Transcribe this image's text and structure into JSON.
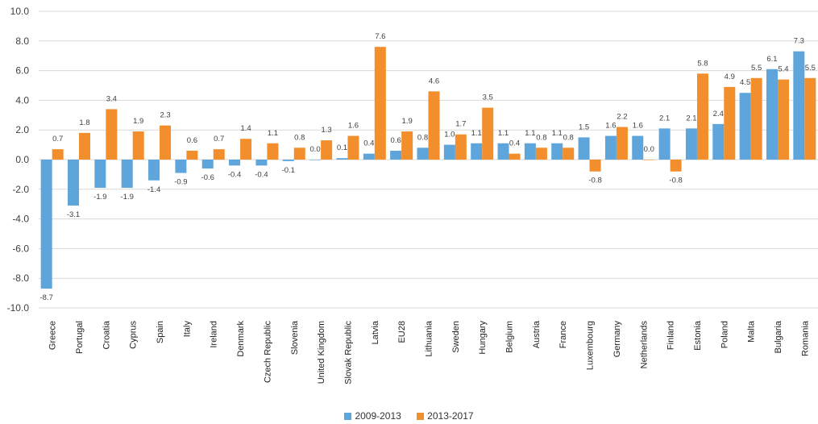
{
  "chart_data": {
    "type": "bar",
    "categories": [
      "Greece",
      "Portugal",
      "Croatia",
      "Cyprus",
      "Spain",
      "Italy",
      "Ireland",
      "Denmark",
      "Czech Republic",
      "Slovenia",
      "United Kingdom",
      "Slovak Republic",
      "Latvia",
      "EU28",
      "Lithuania",
      "Sweden",
      "Hungary",
      "Belgium",
      "Austria",
      "France",
      "Luxembourg",
      "Germany",
      "Netherlands",
      "Finland",
      "Estonia",
      "Poland",
      "Malta",
      "Bulgaria",
      "Romania"
    ],
    "series": [
      {
        "name": "2009-2013",
        "color": "#5DA5DA",
        "values": [
          -8.7,
          -3.1,
          -1.9,
          -1.9,
          -1.4,
          -0.9,
          -0.6,
          -0.4,
          -0.4,
          -0.1,
          0.0,
          0.1,
          0.4,
          0.6,
          0.8,
          1.0,
          1.1,
          1.1,
          1.1,
          1.1,
          1.5,
          1.6,
          1.6,
          2.1,
          2.1,
          2.4,
          4.5,
          6.1,
          7.3
        ],
        "labels": [
          "-8.7",
          "-3.1",
          "-1.9",
          "-1.9",
          "-1.4",
          "-0.9",
          "-0.6",
          "-0.4",
          "-0.4",
          "-0.1",
          "0.0",
          "0.1",
          "0.4",
          "0.6",
          "0.8",
          "1.0",
          "1.1",
          "1.1",
          "1.1",
          "1.1",
          "1.5",
          "1.6",
          "1.6",
          "2.1",
          "2.1",
          "2.4",
          "4.5",
          "6.1",
          "7.3"
        ]
      },
      {
        "name": "2013-2017",
        "color": "#F28E2B",
        "values": [
          0.7,
          1.8,
          3.4,
          1.9,
          2.3,
          0.6,
          0.7,
          1.4,
          1.1,
          0.8,
          1.3,
          1.6,
          7.6,
          1.9,
          4.6,
          1.7,
          3.5,
          0.4,
          0.8,
          0.8,
          -0.8,
          2.2,
          0.0,
          -0.8,
          5.8,
          4.9,
          5.5,
          5.4,
          5.5
        ],
        "labels": [
          "0.7",
          "1.8",
          "3.4",
          "1.9",
          "2.3",
          "0.6",
          "0.7",
          "1.4",
          "1.1",
          "0.8",
          "1.3",
          "1.6",
          "7.6",
          "1.9",
          "4.6",
          "1.7",
          "3.5",
          "0.4",
          "0.8",
          "0.8",
          "-0.8",
          "2.2",
          "0.0",
          "-0.8",
          "5.8",
          "4.9",
          "5.5",
          "5.4",
          "5.5"
        ]
      }
    ],
    "ylim": [
      -10,
      10
    ],
    "yticks": [
      "10.0",
      "8.0",
      "6.0",
      "4.0",
      "2.0",
      "0.0",
      "-2.0",
      "-4.0",
      "-6.0",
      "-8.0",
      "-10.0"
    ],
    "ytick_values": [
      10,
      8,
      6,
      4,
      2,
      0,
      -2,
      -4,
      -6,
      -8,
      -10
    ],
    "grid": true,
    "legend_position": "bottom",
    "title": "",
    "xlabel": "",
    "ylabel": ""
  }
}
